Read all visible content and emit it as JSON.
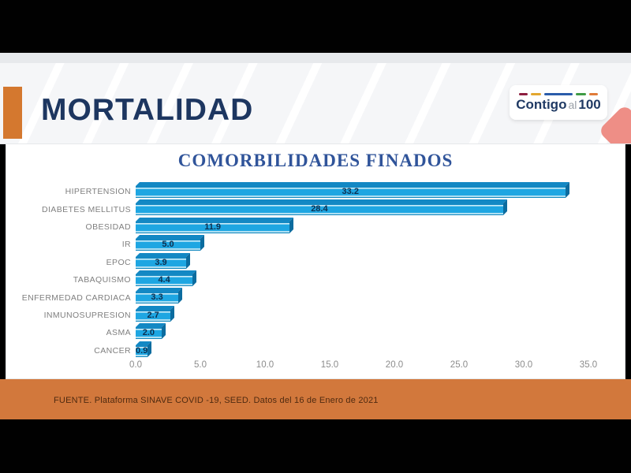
{
  "header": {
    "title": "MORTALIDAD",
    "accent_color": "#d4782f",
    "logo": {
      "word1": "Contigo",
      "word2": "al",
      "word3": "100",
      "dashes": [
        {
          "color": "#8d1e3f",
          "width": 11
        },
        {
          "color": "#e3a72f",
          "width": 13
        },
        {
          "color": "#2a5caa",
          "width": 36
        },
        {
          "color": "#3f9b45",
          "width": 13
        },
        {
          "color": "#e07b39",
          "width": 11
        }
      ]
    }
  },
  "chart_data": {
    "type": "bar",
    "orientation": "horizontal",
    "title": "COMORBILIDADES FINADOS",
    "categories": [
      "HIPERTENSION",
      "DIABETES MELLITUS",
      "OBESIDAD",
      "IR",
      "EPOC",
      "TABAQUISMO",
      "ENFERMEDAD CARDIACA",
      "INMUNOSUPRESION",
      "ASMA",
      "CANCER"
    ],
    "values": [
      33.2,
      28.4,
      11.9,
      5.0,
      3.9,
      4.4,
      3.3,
      2.7,
      2.0,
      0.9
    ],
    "value_labels": [
      "33.2",
      "28.4",
      "11.9",
      "5.0",
      "3.9",
      "4.4",
      "3.3",
      "2.7",
      "2.0",
      "0.9"
    ],
    "xlim": [
      0,
      35
    ],
    "xticks": [
      0,
      5,
      10,
      15,
      20,
      25,
      30,
      35
    ],
    "xtick_labels": [
      "0.0",
      "5.0",
      "10.0",
      "15.0",
      "20.0",
      "25.0",
      "30.0",
      "35.0"
    ],
    "grid": false,
    "legend": false,
    "bar_color": "#1ea6e2",
    "bar_top_color": "#1388c4",
    "bar_side_color": "#0c6c9f",
    "value_label_color": "#0d3050",
    "category_label_color": "#7f7f7f",
    "title_color": "#30549a"
  },
  "footer": {
    "source_text": "FUENTE. Plataforma SINAVE COVID -19, SEED. Datos del 16 de Enero de 2021",
    "background": "#d2783c"
  }
}
